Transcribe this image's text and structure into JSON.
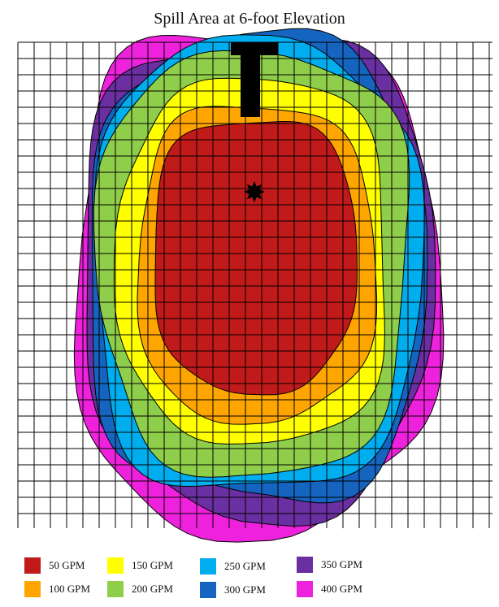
{
  "title": "Spill Area at 6-foot Elevation",
  "legend": [
    {
      "label": "50 GPM",
      "color": "#c01a1a"
    },
    {
      "label": "100 GPM",
      "color": "#ffa500"
    },
    {
      "label": "150 GPM",
      "color": "#ffff00"
    },
    {
      "label": "200 GPM",
      "color": "#8fce4a"
    },
    {
      "label": "250 GPM",
      "color": "#00aeef"
    },
    {
      "label": "300 GPM",
      "color": "#1565c0"
    },
    {
      "label": "350 GPM",
      "color": "#6a2fa0"
    },
    {
      "label": "400 GPM",
      "color": "#ee22dd"
    }
  ],
  "colors": {
    "grid_line": "#000000",
    "source_pipe": "#000000",
    "spill_point_marker": "#000000",
    "contour_outline": "#000000"
  },
  "icons": {
    "spill_point": "star-marker"
  }
}
